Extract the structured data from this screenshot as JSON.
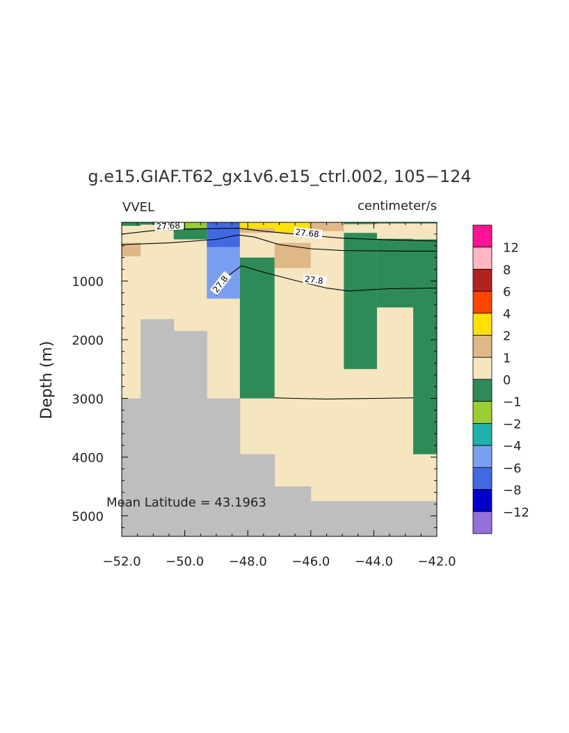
{
  "chart_data": {
    "type": "heatmap",
    "title": "g.e15.GIAF.T62_gx1v6.e15_ctrl.002, 105−124",
    "left_label": "VVEL",
    "right_label": "centimeter/s",
    "ylabel": "Depth (m)",
    "xlabel": "",
    "xlim": [
      -52.0,
      -42.0
    ],
    "ylim": [
      5350,
      0
    ],
    "x_ticks": [
      -52,
      -50,
      -48,
      -46,
      -44,
      -42
    ],
    "x_tick_labels": [
      "−52.0",
      "−50.0",
      "−48.0",
      "−46.0",
      "−44.0",
      "−42.0"
    ],
    "y_ticks": [
      1000,
      2000,
      3000,
      4000,
      5000
    ],
    "y_tick_labels": [
      "1000",
      "2000",
      "3000",
      "4000",
      "5000"
    ],
    "annotation": "Mean Latitude = 43.1963",
    "legend": {
      "placement": "right",
      "labels": [
        "12",
        "8",
        "6",
        "4",
        "2",
        "1",
        "0",
        "−1",
        "−2",
        "−4",
        "−6",
        "−8",
        "−12"
      ],
      "colors": [
        "#ff1493",
        "#ffb6c1",
        "#b22222",
        "#ff4500",
        "#ffe000",
        "#deb887",
        "#f5e6c0",
        "#2e8b57",
        "#9acd32",
        "#20b2aa",
        "#7b9ff0",
        "#4169e1",
        "#0000cd",
        "#9370db"
      ]
    },
    "column_edges": [
      -52.0,
      -51.4,
      -50.35,
      -49.3,
      -48.25,
      -47.15,
      -46.0,
      -44.95,
      -43.9,
      -42.75,
      -42.0
    ],
    "land_color": "#bebebe",
    "ocean_fill": "#f5e6c0",
    "bottom_depth": [
      3000,
      1650,
      1850,
      3000,
      3950,
      4500,
      4750,
      4750,
      4750,
      4750
    ],
    "patches": [
      {
        "x0": -52.0,
        "x1": -51.4,
        "d0": 0,
        "d1": 60,
        "color": "#2e8b57"
      },
      {
        "x0": -52.0,
        "x1": -51.4,
        "d0": 350,
        "d1": 580,
        "color": "#deb887"
      },
      {
        "x0": -51.4,
        "x1": -50.35,
        "d0": 0,
        "d1": 40,
        "color": "#2e8b57"
      },
      {
        "x0": -50.35,
        "x1": -49.3,
        "d0": 0,
        "d1": 100,
        "color": "#9acd32"
      },
      {
        "x0": -50.35,
        "x1": -49.3,
        "d0": 100,
        "d1": 290,
        "color": "#2e8b57"
      },
      {
        "x0": -49.3,
        "x1": -48.25,
        "d0": 0,
        "d1": 420,
        "color": "#4169e1"
      },
      {
        "x0": -49.3,
        "x1": -48.25,
        "d0": 420,
        "d1": 1300,
        "color": "#7b9ff0"
      },
      {
        "x0": -48.25,
        "x1": -47.15,
        "d0": 0,
        "d1": 100,
        "color": "#ffe000"
      },
      {
        "x0": -48.25,
        "x1": -47.15,
        "d0": 100,
        "d1": 180,
        "color": "#deb887"
      },
      {
        "x0": -48.25,
        "x1": -47.15,
        "d0": 600,
        "d1": 3000,
        "color": "#2e8b57"
      },
      {
        "x0": -47.15,
        "x1": -46.0,
        "d0": 0,
        "d1": 180,
        "color": "#ffe000"
      },
      {
        "x0": -47.15,
        "x1": -46.0,
        "d0": 350,
        "d1": 780,
        "color": "#deb887"
      },
      {
        "x0": -46.0,
        "x1": -44.95,
        "d0": 0,
        "d1": 150,
        "color": "#deb887"
      },
      {
        "x0": -44.95,
        "x1": -43.9,
        "d0": 0,
        "d1": 30,
        "color": "#2e8b57"
      },
      {
        "x0": -44.95,
        "x1": -43.9,
        "d0": 180,
        "d1": 2500,
        "color": "#2e8b57"
      },
      {
        "x0": -43.9,
        "x1": -42.75,
        "d0": 0,
        "d1": 20,
        "color": "#2e8b57"
      },
      {
        "x0": -43.9,
        "x1": -42.75,
        "d0": 280,
        "d1": 1450,
        "color": "#2e8b57"
      },
      {
        "x0": -42.75,
        "x1": -42.0,
        "d0": 0,
        "d1": 20,
        "color": "#2e8b57"
      },
      {
        "x0": -42.75,
        "x1": -42.0,
        "d0": 290,
        "d1": 3950,
        "color": "#2e8b57"
      }
    ],
    "contours": [
      {
        "label": "27.68",
        "points": [
          [
            -52.0,
            200
          ],
          [
            -51.0,
            140
          ],
          [
            -49.5,
            110
          ],
          [
            -48.3,
            100
          ],
          [
            -47.5,
            150
          ],
          [
            -46.5,
            200
          ],
          [
            -45.0,
            270
          ],
          [
            -43.5,
            300
          ],
          [
            -42.0,
            320
          ]
        ],
        "labels_at": [
          [
            -50.9,
            110,
            -3
          ],
          [
            -46.5,
            200,
            6
          ]
        ]
      },
      {
        "label": "",
        "points": [
          [
            -52.0,
            380
          ],
          [
            -50.5,
            350
          ],
          [
            -49.0,
            290
          ],
          [
            -48.3,
            215
          ],
          [
            -47.8,
            250
          ],
          [
            -47.0,
            380
          ],
          [
            -46.0,
            450
          ],
          [
            -45.0,
            480
          ],
          [
            -43.0,
            490
          ],
          [
            -42.0,
            490
          ]
        ],
        "labels_at": []
      },
      {
        "label": "27.8",
        "points": [
          [
            -49.0,
            1250
          ],
          [
            -48.6,
            900
          ],
          [
            -48.2,
            740
          ],
          [
            -47.5,
            850
          ],
          [
            -46.5,
            990
          ],
          [
            -45.5,
            1120
          ],
          [
            -44.8,
            1170
          ],
          [
            -43.5,
            1130
          ],
          [
            -42.0,
            1120
          ]
        ],
        "labels_at": [
          [
            -49.0,
            1200,
            -52
          ],
          [
            -46.2,
            1000,
            7
          ]
        ]
      },
      {
        "label": "",
        "points": [
          [
            -47.15,
            2990
          ],
          [
            -46.5,
            3000
          ],
          [
            -45.5,
            3010
          ],
          [
            -44.0,
            3000
          ],
          [
            -42.75,
            2990
          ]
        ],
        "labels_at": []
      }
    ]
  }
}
